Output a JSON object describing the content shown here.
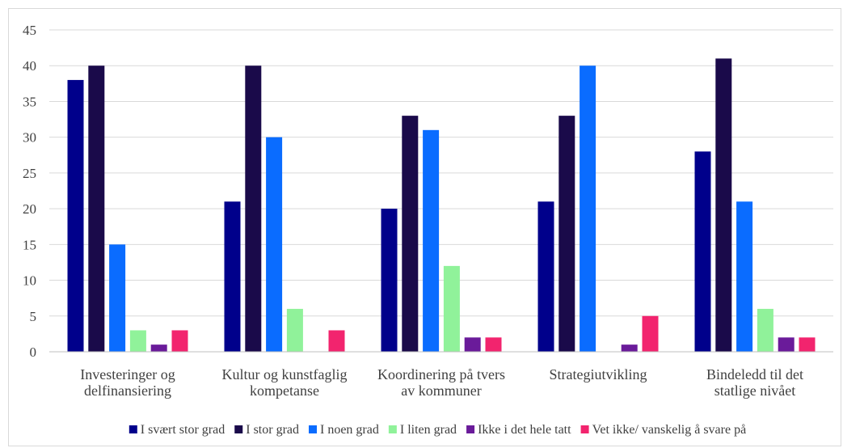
{
  "chart_data": {
    "type": "bar",
    "title": "",
    "xlabel": "",
    "ylabel": "",
    "ylim": [
      0,
      45
    ],
    "yticks": [
      0,
      5,
      10,
      15,
      20,
      25,
      30,
      35,
      40,
      45
    ],
    "grid": true,
    "legend": "bottom",
    "categories": [
      [
        "Investeringer og",
        "delfinansiering"
      ],
      [
        "Kultur og kunstfaglig",
        "kompetanse"
      ],
      [
        "Koordinering på tvers",
        "av kommuner"
      ],
      [
        "Strategiutvikling"
      ],
      [
        "Bindeledd til det",
        "statlige nivået"
      ]
    ],
    "series": [
      {
        "name": "I svært stor grad",
        "color": "#00008b",
        "values": [
          38,
          21,
          20,
          21,
          28
        ]
      },
      {
        "name": "I stor grad",
        "color": "#1a0a4a",
        "values": [
          40,
          40,
          33,
          33,
          41
        ]
      },
      {
        "name": "I noen grad",
        "color": "#0a6cff",
        "values": [
          15,
          30,
          31,
          40,
          21
        ]
      },
      {
        "name": "I liten grad",
        "color": "#90f29a",
        "values": [
          3,
          6,
          12,
          0,
          6
        ]
      },
      {
        "name": "Ikke i det hele tatt",
        "color": "#6a1b9a",
        "values": [
          1,
          0,
          2,
          1,
          2
        ]
      },
      {
        "name": "Vet ikke/ vanskelig å svare på",
        "color": "#f2246e",
        "values": [
          3,
          3,
          2,
          5,
          2
        ]
      }
    ]
  }
}
